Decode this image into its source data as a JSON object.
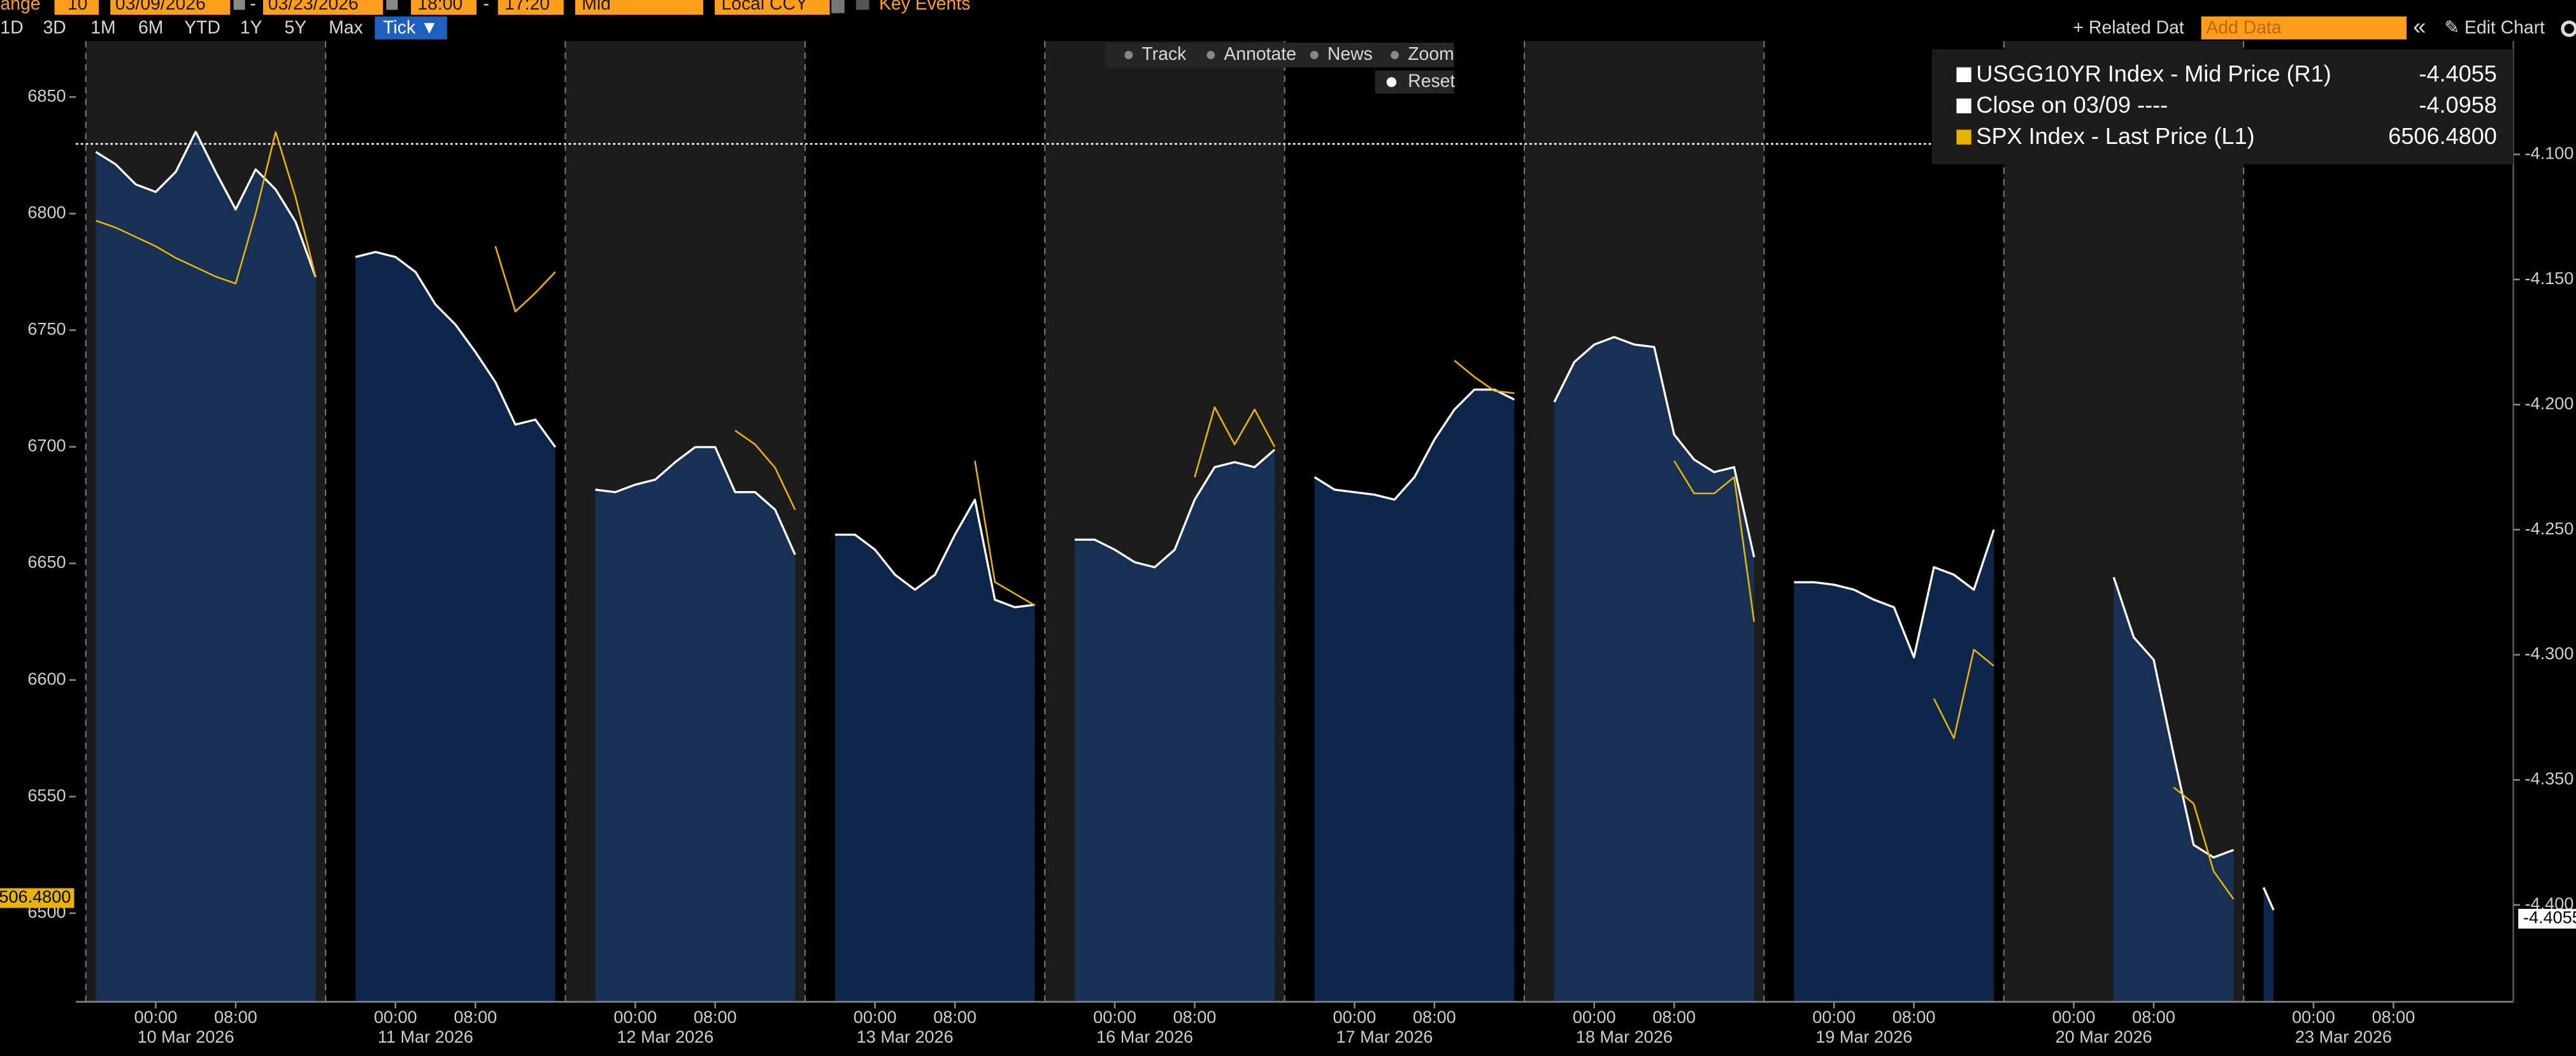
{
  "toolbar": {
    "range_label": "ange",
    "range_value": "10",
    "start_date": "03/09/2026",
    "date_sep": "-",
    "end_date": "03/23/2026",
    "start_time": "18:00",
    "time_sep": "-",
    "end_time": "17:20",
    "price_field": "Mid",
    "currency": "Local CCY",
    "key_events": "Key Events",
    "periods": [
      "1D",
      "3D",
      "1M",
      "6M",
      "YTD",
      "1Y",
      "5Y",
      "Max"
    ],
    "frequency": "Tick ▼",
    "related_data": "+ Related Dat",
    "add_data": "Add Data",
    "collapse": "«",
    "edit_chart": "✎ Edit Chart"
  },
  "chart_tools": [
    "Track",
    "Annotate",
    "News",
    "Zoom"
  ],
  "reset": "Reset",
  "chart_data": {
    "type": "line",
    "x": [
      1,
      3,
      5,
      7,
      9,
      11,
      13,
      15,
      17,
      19,
      21,
      23,
      24,
      25,
      27,
      29,
      31,
      33,
      35,
      37,
      39,
      41,
      43,
      45,
      47,
      48,
      49,
      51,
      53,
      55,
      57,
      59,
      61,
      63,
      65,
      67,
      69,
      71,
      72,
      73,
      75,
      77,
      79,
      81,
      83,
      85,
      87,
      89,
      91,
      93,
      95,
      96,
      97,
      99,
      101,
      103,
      105,
      107,
      109,
      111,
      113,
      115,
      117,
      119,
      120,
      121,
      123,
      125,
      127,
      129,
      131,
      133,
      135,
      137,
      139,
      141,
      143,
      144,
      145,
      147,
      149,
      151,
      153,
      155,
      157,
      159,
      161,
      163,
      165,
      167,
      168,
      169,
      171,
      173,
      175,
      177,
      179,
      181,
      183,
      185,
      187,
      189,
      191,
      192,
      193,
      195,
      197,
      199,
      201,
      203,
      205,
      207,
      209,
      211,
      213,
      215,
      216,
      218,
      219
    ],
    "series": [
      {
        "name": "USGG10YR Index - Mid Price (R1)",
        "color": "#ffffff",
        "axis": "y2",
        "area_color": "rgba(22,62,118,0.62)",
        "last_value": -4.4055,
        "values": [
          -4.099,
          -4.104,
          -4.112,
          -4.115,
          -4.107,
          -4.091,
          -4.107,
          -4.122,
          -4.106,
          -4.114,
          -4.127,
          -4.149,
          null,
          null,
          -4.141,
          -4.139,
          -4.141,
          -4.147,
          -4.16,
          -4.168,
          -4.179,
          -4.191,
          -4.208,
          -4.206,
          -4.217,
          null,
          null,
          -4.234,
          -4.235,
          -4.232,
          -4.23,
          -4.223,
          -4.217,
          -4.217,
          -4.235,
          -4.235,
          -4.242,
          -4.26,
          null,
          null,
          -4.252,
          -4.252,
          -4.258,
          -4.268,
          -4.274,
          -4.268,
          -4.252,
          -4.238,
          -4.278,
          -4.281,
          -4.28,
          null,
          null,
          -4.254,
          -4.254,
          -4.258,
          -4.263,
          -4.265,
          -4.258,
          -4.238,
          -4.225,
          -4.223,
          -4.225,
          -4.218,
          null,
          null,
          -4.229,
          -4.234,
          -4.235,
          -4.236,
          -4.238,
          -4.229,
          -4.214,
          -4.202,
          -4.194,
          -4.194,
          -4.198,
          null,
          null,
          -4.199,
          -4.183,
          -4.176,
          -4.173,
          -4.176,
          -4.177,
          -4.212,
          -4.222,
          -4.227,
          -4.225,
          -4.261,
          null,
          null,
          -4.271,
          -4.271,
          -4.272,
          -4.274,
          -4.278,
          -4.281,
          -4.301,
          -4.265,
          -4.268,
          -4.274,
          -4.25,
          null,
          null,
          null,
          null,
          null,
          null,
          -4.269,
          -4.293,
          -4.302,
          -4.34,
          -4.376,
          -4.381,
          -4.378,
          null,
          -4.393,
          -4.402
        ]
      },
      {
        "name": "SPX Index - Last Price (L1)",
        "color": "#e8b400",
        "axis": "y",
        "last_value": 6506.48,
        "last_value_label": "6506.4800",
        "values": [
          6797,
          6794,
          6790,
          6786,
          6781,
          6777,
          6773,
          6770,
          6800,
          6835,
          6807,
          6773,
          null,
          null,
          null,
          null,
          null,
          null,
          null,
          null,
          null,
          6786,
          6758,
          6766,
          6775,
          null,
          null,
          null,
          null,
          null,
          null,
          null,
          null,
          null,
          6707,
          6701,
          6691,
          6673,
          null,
          null,
          null,
          null,
          null,
          null,
          null,
          null,
          null,
          6694,
          6642,
          6637,
          6632,
          null,
          null,
          null,
          null,
          null,
          null,
          null,
          null,
          6687,
          6717,
          6701,
          6716,
          6700,
          null,
          null,
          null,
          null,
          null,
          null,
          null,
          null,
          null,
          6737,
          6730,
          6724,
          6723,
          null,
          null,
          null,
          null,
          null,
          null,
          null,
          null,
          6694,
          6680,
          6680,
          6687,
          6625,
          null,
          null,
          null,
          null,
          null,
          null,
          null,
          null,
          null,
          6592,
          6575,
          6613,
          6606,
          null,
          null,
          null,
          null,
          null,
          null,
          null,
          null,
          null,
          6554,
          6547,
          6518,
          6506,
          null,
          null,
          null
        ]
      }
    ],
    "reference_lines": [
      {
        "name": "Close on 03/09 ----",
        "value": -4.0958,
        "axis": "y2",
        "color": "#ffffff"
      }
    ],
    "xlim": [
      -1,
      243
    ],
    "xticks": [
      {
        "value": 7,
        "label": "00:00"
      },
      {
        "value": 15,
        "label": "08:00"
      },
      {
        "value": 31,
        "label": "00:00"
      },
      {
        "value": 39,
        "label": "08:00"
      },
      {
        "value": 55,
        "label": "00:00"
      },
      {
        "value": 63,
        "label": "08:00"
      },
      {
        "value": 79,
        "label": "00:00"
      },
      {
        "value": 87,
        "label": "08:00"
      },
      {
        "value": 103,
        "label": "00:00"
      },
      {
        "value": 111,
        "label": "08:00"
      },
      {
        "value": 127,
        "label": "00:00"
      },
      {
        "value": 135,
        "label": "08:00"
      },
      {
        "value": 151,
        "label": "00:00"
      },
      {
        "value": 159,
        "label": "08:00"
      },
      {
        "value": 175,
        "label": "00:00"
      },
      {
        "value": 183,
        "label": "08:00"
      },
      {
        "value": 199,
        "label": "00:00"
      },
      {
        "value": 207,
        "label": "08:00"
      },
      {
        "value": 223,
        "label": "00:00"
      },
      {
        "value": 231,
        "label": "08:00"
      }
    ],
    "x_date_labels": [
      {
        "value": 10,
        "label": "10 Mar 2026"
      },
      {
        "value": 34,
        "label": "11 Mar 2026"
      },
      {
        "value": 58,
        "label": "12 Mar 2026"
      },
      {
        "value": 82,
        "label": "13 Mar 2026"
      },
      {
        "value": 106,
        "label": "16 Mar 2026"
      },
      {
        "value": 130,
        "label": "17 Mar 2026"
      },
      {
        "value": 154,
        "label": "18 Mar 2026"
      },
      {
        "value": 178,
        "label": "19 Mar 2026"
      },
      {
        "value": 202,
        "label": "20 Mar 2026"
      },
      {
        "value": 226,
        "label": "23 Mar 2026"
      }
    ],
    "session_breaks": [
      0,
      24,
      48,
      72,
      96,
      120,
      144,
      168,
      192,
      216
    ],
    "session_colors": [
      "#1c1c1c",
      "#000000",
      "#1c1c1c",
      "#000000",
      "#1c1c1c",
      "#000000",
      "#1c1c1c",
      "#000000",
      "#1c1c1c",
      "#000000"
    ],
    "ylim": [
      6462,
      6874
    ],
    "yticks": [
      6500,
      6550,
      6600,
      6650,
      6700,
      6750,
      6800,
      6850
    ],
    "y2lim": [
      -4.4387,
      -4.0547
    ],
    "y2ticks": [
      {
        "value": -4.1,
        "label": "-4.100"
      },
      {
        "value": -4.15,
        "label": "-4.150"
      },
      {
        "value": -4.2,
        "label": "-4.200"
      },
      {
        "value": -4.25,
        "label": "-4.250"
      },
      {
        "value": -4.3,
        "label": "-4.300"
      },
      {
        "value": -4.35,
        "label": "-4.350"
      },
      {
        "value": -4.4,
        "label": "-4.400"
      }
    ],
    "legend": "top-right"
  }
}
